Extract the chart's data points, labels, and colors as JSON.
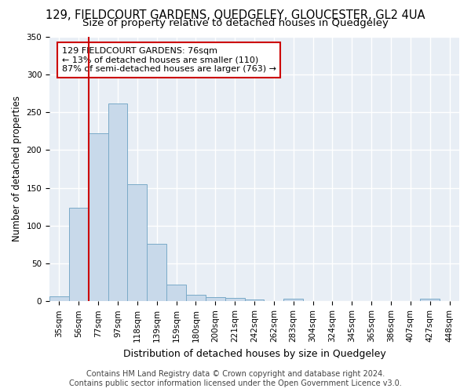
{
  "title": "129, FIELDCOURT GARDENS, QUEDGELEY, GLOUCESTER, GL2 4UA",
  "subtitle": "Size of property relative to detached houses in Quedgeley",
  "xlabel": "Distribution of detached houses by size in Quedgeley",
  "ylabel": "Number of detached properties",
  "categories": [
    "35sqm",
    "56sqm",
    "77sqm",
    "97sqm",
    "118sqm",
    "139sqm",
    "159sqm",
    "180sqm",
    "200sqm",
    "221sqm",
    "242sqm",
    "262sqm",
    "283sqm",
    "304sqm",
    "324sqm",
    "345sqm",
    "365sqm",
    "386sqm",
    "407sqm",
    "427sqm",
    "448sqm"
  ],
  "values": [
    7,
    124,
    222,
    261,
    155,
    76,
    22,
    9,
    6,
    4,
    2,
    0,
    3,
    0,
    0,
    0,
    0,
    0,
    0,
    3,
    0
  ],
  "bar_color": "#c8d9ea",
  "bar_edgecolor": "#7aaac8",
  "property_line_label": "129 FIELDCOURT GARDENS: 76sqm",
  "annotation_line1": "← 13% of detached houses are smaller (110)",
  "annotation_line2": "87% of semi-detached houses are larger (763) →",
  "annotation_box_facecolor": "#ffffff",
  "annotation_box_edgecolor": "#cc0000",
  "red_line_color": "#cc0000",
  "ylim": [
    0,
    350
  ],
  "footer1": "Contains HM Land Registry data © Crown copyright and database right 2024.",
  "footer2": "Contains public sector information licensed under the Open Government Licence v3.0.",
  "background_color": "#e8eef5",
  "grid_color": "#ffffff",
  "fig_facecolor": "#ffffff",
  "title_fontsize": 10.5,
  "subtitle_fontsize": 9.5,
  "xlabel_fontsize": 9,
  "ylabel_fontsize": 8.5,
  "tick_fontsize": 7.5,
  "annotation_fontsize": 8,
  "footer_fontsize": 7
}
